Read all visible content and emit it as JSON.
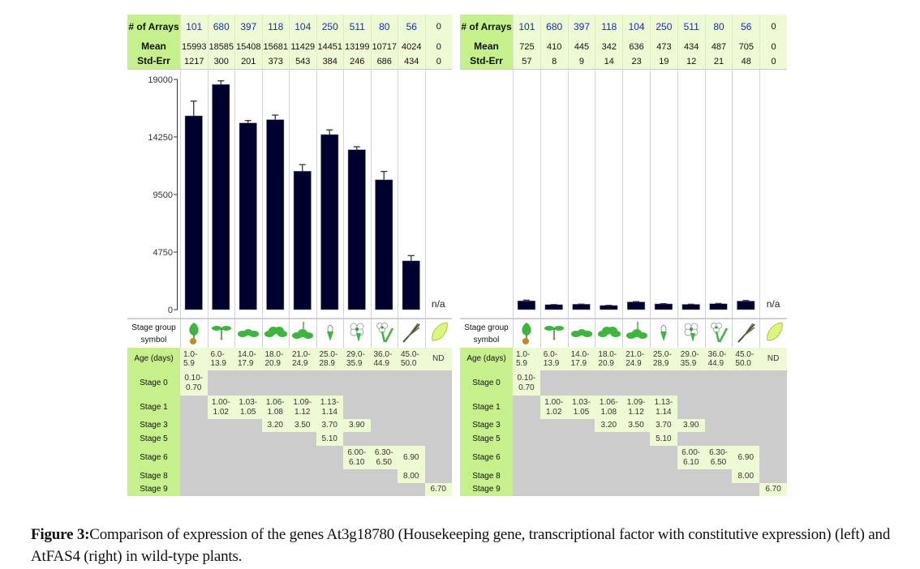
{
  "chart_data": [
    {
      "type": "bar",
      "title": "At3g18780 expression (left)",
      "categories": [
        "1.0-5.9",
        "6.0-13.9",
        "14.0-17.9",
        "18.0-20.9",
        "21.0-24.9",
        "25.0-28.9",
        "29.0-35.9",
        "36.0-44.9",
        "45.0-50.0",
        "ND"
      ],
      "values": [
        15993,
        18585,
        15408,
        15681,
        11429,
        14451,
        13199,
        10717,
        4024,
        null
      ],
      "errors": [
        1217,
        300,
        201,
        373,
        543,
        384,
        246,
        686,
        434,
        0
      ],
      "ylim": [
        0,
        19000
      ],
      "yticks": [
        "19000",
        "14250",
        "9500",
        "4750",
        "0"
      ],
      "xlabel": "",
      "ylabel": "",
      "na_label": "n/a",
      "grid": false,
      "bar_color": "#00002e"
    },
    {
      "type": "bar",
      "title": "AtFAS4 expression (right)",
      "categories": [
        "1.0-5.9",
        "6.0-13.9",
        "14.0-17.9",
        "18.0-20.9",
        "21.0-24.9",
        "25.0-28.9",
        "29.0-35.9",
        "36.0-44.9",
        "45.0-50.0",
        "ND"
      ],
      "values": [
        725,
        410,
        445,
        342,
        636,
        473,
        434,
        487,
        705,
        null
      ],
      "errors": [
        57,
        8,
        9,
        14,
        23,
        19,
        12,
        21,
        48,
        0
      ],
      "ylim": [
        0,
        19000
      ],
      "yticks": [],
      "xlabel": "",
      "ylabel": "",
      "na_label": "n/a",
      "grid": false,
      "bar_color": "#00002e"
    }
  ],
  "labels": {
    "arrays": "# of Arrays",
    "mean": "Mean",
    "stderr": "Std-Err",
    "symbol": "Stage group symbol",
    "age": "Age (days)",
    "stages": [
      "Stage 0",
      "Stage 1",
      "Stage 3",
      "Stage 5",
      "Stage 6",
      "Stage 8",
      "Stage 9"
    ]
  },
  "left": {
    "arrays": [
      "101",
      "680",
      "397",
      "118",
      "104",
      "250",
      "511",
      "80",
      "56",
      "0"
    ],
    "mean": [
      "15993",
      "18585",
      "15408",
      "15681",
      "11429",
      "14451",
      "13199",
      "10717",
      "4024",
      "0"
    ],
    "stderr": [
      "1217",
      "300",
      "201",
      "373",
      "543",
      "384",
      "246",
      "686",
      "434",
      "0"
    ]
  },
  "right": {
    "arrays": [
      "101",
      "680",
      "397",
      "118",
      "104",
      "250",
      "511",
      "80",
      "56",
      "0"
    ],
    "mean": [
      "725",
      "410",
      "445",
      "342",
      "636",
      "473",
      "434",
      "487",
      "705",
      "0"
    ],
    "stderr": [
      "57",
      "8",
      "9",
      "14",
      "23",
      "19",
      "12",
      "21",
      "48",
      "0"
    ]
  },
  "ages": [
    "1.0- 5.9",
    "6.0- 13.9",
    "14.0- 17.9",
    "18.0- 20.9",
    "21.0- 24.9",
    "25.0- 28.9",
    "29.0- 35.9",
    "36.0- 44.9",
    "45.0- 50.0",
    "ND"
  ],
  "symbols": [
    "seed-germination-icon",
    "seedling-icon",
    "rosette-small-icon",
    "rosette-large-icon",
    "bolting-icon",
    "flower-bud-icon",
    "open-flower-icon",
    "flower-silique-icon",
    "mature-silique-icon",
    "seed-icon"
  ],
  "stage_table": [
    {
      "stage": "Stage 0",
      "cells": [
        {
          "col": 0,
          "text": "0.10- 0.70"
        }
      ]
    },
    {
      "stage": "Stage 1",
      "cells": [
        {
          "col": 1,
          "text": "1.00- 1.02"
        },
        {
          "col": 2,
          "text": "1.03- 1.05"
        },
        {
          "col": 3,
          "text": "1.06- 1.08"
        },
        {
          "col": 4,
          "text": "1.09- 1.12"
        },
        {
          "col": 5,
          "text": "1.13- 1.14"
        }
      ]
    },
    {
      "stage": "Stage 3",
      "cells": [
        {
          "col": 3,
          "text": "3.20"
        },
        {
          "col": 4,
          "text": "3.50"
        },
        {
          "col": 5,
          "text": "3.70"
        },
        {
          "col": 6,
          "text": "3.90"
        }
      ]
    },
    {
      "stage": "Stage 5",
      "cells": [
        {
          "col": 5,
          "text": "5.10"
        }
      ]
    },
    {
      "stage": "Stage 6",
      "cells": [
        {
          "col": 6,
          "text": "6.00- 6.10"
        },
        {
          "col": 7,
          "text": "6.30- 6.50"
        },
        {
          "col": 8,
          "text": "6.90"
        }
      ]
    },
    {
      "stage": "Stage 8",
      "cells": [
        {
          "col": 8,
          "text": "8.00"
        }
      ]
    },
    {
      "stage": "Stage 9",
      "cells": [
        {
          "col": 9,
          "text": "6.70"
        }
      ]
    }
  ],
  "caption": {
    "label": "Figure 3:",
    "text": "Comparison of expression of the genes At3g18780 (Housekeeping gene, transcriptional factor with constitutive expression) (left) and AtFAS4 (right) in wild-type plants."
  },
  "colors": {
    "label_green": "#c6f08c",
    "value_green": "#eefad4",
    "stage_gray": "#cccccc",
    "array_blue": "#1a2ea8",
    "bar": "#00002e"
  }
}
